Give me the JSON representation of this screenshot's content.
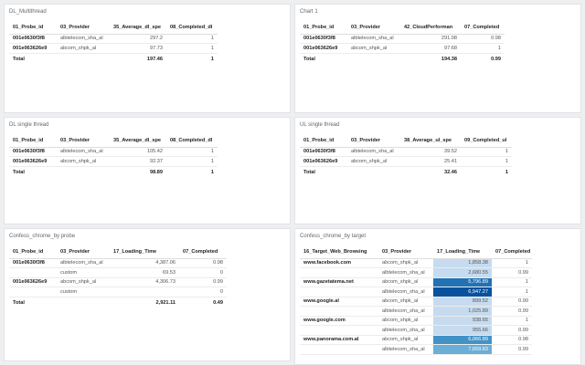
{
  "panels": [
    {
      "title": "DL_Multithread",
      "headers": [
        "01_Probe_id",
        "03_Provider",
        "35_Average_dl_spe",
        "08_Completed_dl"
      ],
      "rows": [
        [
          "001e0630f3f8",
          "albtelecom_sha_al",
          "297.2",
          "1"
        ],
        [
          "001e063626e9",
          "abcom_shpk_al",
          "97.73",
          "1"
        ]
      ],
      "total": [
        "Total",
        "",
        "197.46",
        "1"
      ]
    },
    {
      "title": "Chart 1",
      "headers": [
        "01_Probe_id",
        "03_Provider",
        "42_CloudPerforman",
        "07_Completed"
      ],
      "rows": [
        [
          "001e0630f3f8",
          "albtelecom_sha_al",
          "291.08",
          "0.98"
        ],
        [
          "001e063626e9",
          "abcom_shpk_al",
          "97.68",
          "1"
        ]
      ],
      "total": [
        "Total",
        "",
        "194.38",
        "0.99"
      ]
    },
    {
      "title": "DL single thread",
      "headers": [
        "01_Probe_id",
        "03_Provider",
        "35_Average_dl_spe",
        "08_Completed_dl"
      ],
      "rows": [
        [
          "001e0630f3f8",
          "albtelecom_sha_al",
          "105.42",
          "1"
        ],
        [
          "001e063626e9",
          "abcom_shpk_al",
          "92.37",
          "1"
        ]
      ],
      "total": [
        "Total",
        "",
        "98.89",
        "1"
      ]
    },
    {
      "title": "UL single thread",
      "headers": [
        "01_Probe_id",
        "03_Provider",
        "38_Average_ul_spe",
        "09_Completed_ul"
      ],
      "rows": [
        [
          "001e0630f3f8",
          "albtelecom_sha_al",
          "39.52",
          "1"
        ],
        [
          "001e063626e9",
          "abcom_shpk_al",
          "25.41",
          "1"
        ]
      ],
      "total": [
        "Total",
        "",
        "32.46",
        "1"
      ]
    },
    {
      "title": "Confess_chrome_by probe",
      "headers": [
        "01_Probe_id",
        "03_Provider",
        "17_Loading_Time",
        "07_Completed"
      ],
      "rows": [
        [
          "001e0630f3f8",
          "albtelecom_sha_al",
          "4,387.06",
          "0.98"
        ],
        [
          "",
          "custom",
          "69.53",
          "0"
        ],
        [
          "001e063626e9",
          "abcom_shpk_al",
          "4,306.73",
          "0.99"
        ],
        [
          "",
          "custom",
          "",
          "0"
        ]
      ],
      "total": [
        "Total",
        "",
        "2,921.11",
        "0.49"
      ]
    },
    {
      "title": "Confess_chrome_by target",
      "headers": [
        "16_Target_Web_Browsing",
        "03_Provider",
        "17_Loading_Time",
        "07_Completed"
      ],
      "rows": [
        [
          "www.facebook.com",
          "abcom_shpk_al",
          "1,858.38",
          "1"
        ],
        [
          "",
          "albtelecom_sha_al",
          "2,680.55",
          "0.99"
        ],
        [
          "www.gazetatema.net",
          "abcom_shpk_al",
          "5,796.89",
          "1"
        ],
        [
          "",
          "albtelecom_sha_al",
          "6,947.27",
          "1"
        ],
        [
          "www.google.al",
          "abcom_shpk_al",
          "899.52",
          "0.99"
        ],
        [
          "",
          "albtelecom_sha_al",
          "1,025.89",
          "0.99"
        ],
        [
          "www.google.com",
          "abcom_shpk_al",
          "938.65",
          "1"
        ],
        [
          "",
          "albtelecom_sha_al",
          "955.66",
          "0.99"
        ],
        [
          "www.panorama.com.al",
          "abcom_shpk_al",
          "6,066.89",
          "0.98"
        ],
        [
          "",
          "albtelecom_sha_al",
          "7,659.83",
          "0.99"
        ]
      ],
      "heat": [
        1,
        1,
        2,
        3,
        1,
        1,
        1,
        1,
        4,
        5
      ]
    }
  ]
}
